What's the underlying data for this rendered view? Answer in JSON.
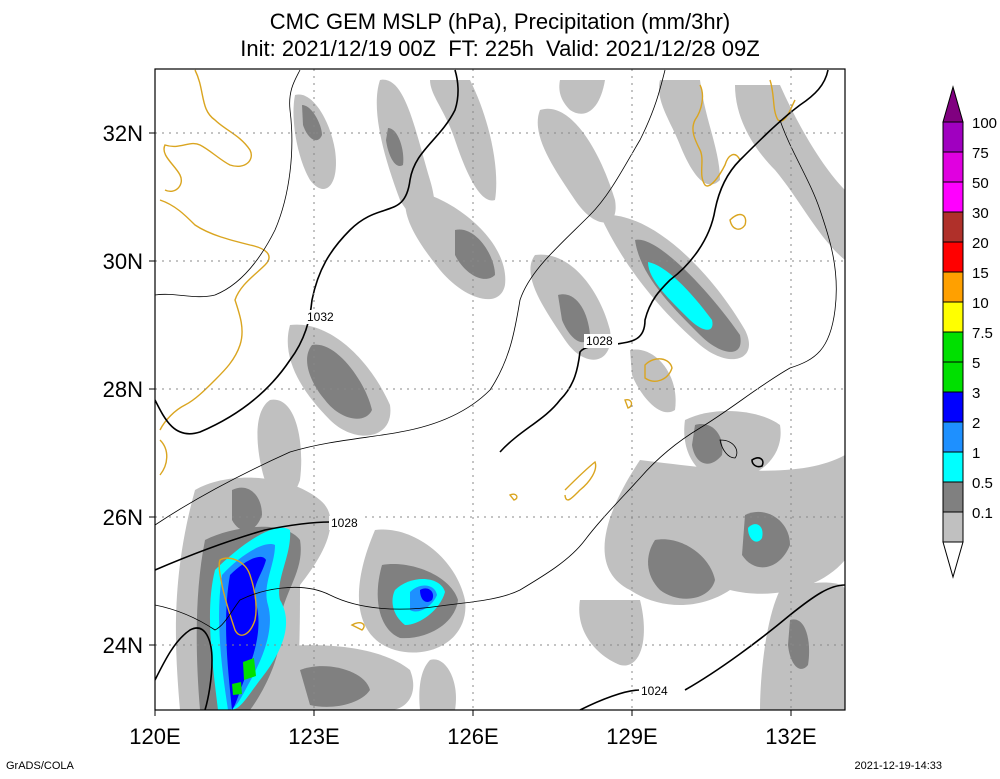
{
  "title": {
    "line1": "CMC GEM MSLP (hPa), Precipitation (mm/3hr)",
    "line2": "Init: 2021/12/19 00Z  FT: 225h  Valid: 2021/12/28 09Z"
  },
  "map": {
    "lon_labels": [
      "120E",
      "123E",
      "126E",
      "129E",
      "132E"
    ],
    "lat_labels": [
      "32N",
      "30N",
      "28N",
      "26N",
      "24N"
    ],
    "isobar_labels": [
      "1032",
      "1028",
      "1028",
      "1024"
    ],
    "coastline_color": "#daa520",
    "precip_shading": "grayscale to cyan/blue/green"
  },
  "colorbar": {
    "labels": [
      "100",
      "75",
      "50",
      "30",
      "20",
      "15",
      "10",
      "7.5",
      "5",
      "3",
      "2",
      "1",
      "0.5",
      "0.1"
    ],
    "colors": [
      "#800080",
      "#a000c0",
      "#e000e0",
      "#ff00ff",
      "#b0302a",
      "#ff0000",
      "#ffa000",
      "#ffff00",
      "#00e000",
      "#0000ff",
      "#1e90ff",
      "#00ffff",
      "#808080",
      "#c0c0c0",
      "#ffffff"
    ]
  },
  "footer": {
    "left": "GrADS/COLA",
    "right": "2021-12-19-14:33"
  }
}
